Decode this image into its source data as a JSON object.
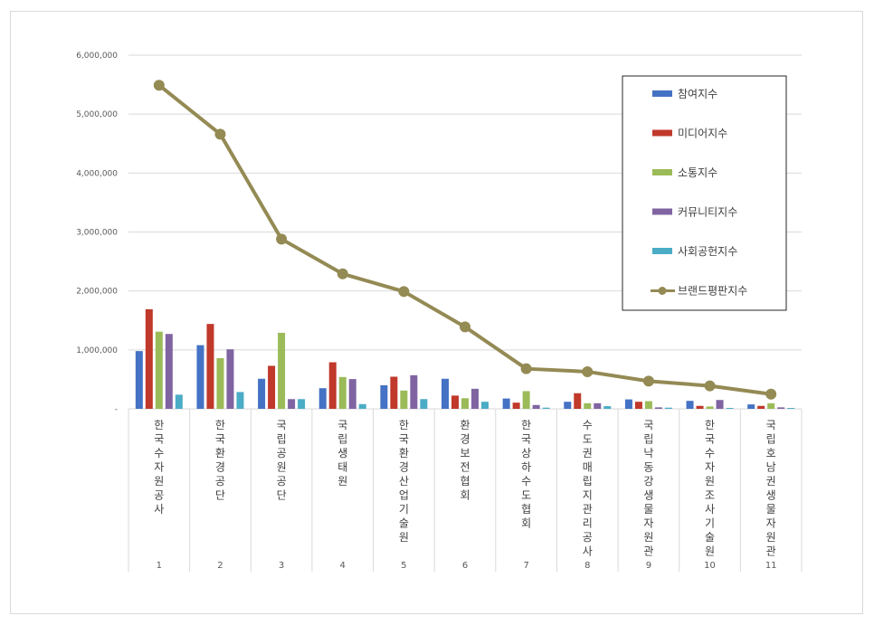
{
  "chart_data": {
    "type": "bar",
    "ylim": [
      0,
      6000000
    ],
    "yticks": [
      "-",
      "1,000,000",
      "2,000,000",
      "3,000,000",
      "4,000,000",
      "5,000,000",
      "6,000,000"
    ],
    "grid": true,
    "legend_position": "top-right",
    "categories": [
      "1",
      "2",
      "3",
      "4",
      "5",
      "6",
      "7",
      "8",
      "9",
      "10",
      "11"
    ],
    "category_names": [
      "한국수자원공사",
      "한국환경공단",
      "국립공원공단",
      "국립생태원",
      "한국환경산업기술원",
      "환경보전협회",
      "한국상하수도협회",
      "수도권매립지관리공사",
      "국립낙동강생물자원관",
      "한국수자원조사기술원",
      "국립호남권생물자원관"
    ],
    "series": [
      {
        "name": "참여지수",
        "kind": "bar",
        "color": "#4472c4",
        "values": [
          980000,
          1080000,
          510000,
          350000,
          400000,
          510000,
          175000,
          120000,
          160000,
          135000,
          75000
        ]
      },
      {
        "name": "미디어지수",
        "kind": "bar",
        "color": "#c0392b",
        "values": [
          1690000,
          1440000,
          730000,
          790000,
          545000,
          225000,
          105000,
          265000,
          120000,
          50000,
          50000
        ]
      },
      {
        "name": "소통지수",
        "kind": "bar",
        "color": "#9bbb59",
        "values": [
          1310000,
          860000,
          1290000,
          540000,
          310000,
          180000,
          300000,
          95000,
          130000,
          40000,
          95000
        ]
      },
      {
        "name": "커뮤니티지수",
        "kind": "bar",
        "color": "#8064a2",
        "values": [
          1270000,
          1010000,
          165000,
          505000,
          570000,
          340000,
          65000,
          95000,
          25000,
          150000,
          25000
        ]
      },
      {
        "name": "사회공헌지수",
        "kind": "bar",
        "color": "#4bacc6",
        "values": [
          240000,
          285000,
          165000,
          80000,
          165000,
          120000,
          20000,
          45000,
          20000,
          15000,
          15000
        ]
      },
      {
        "name": "브랜드평판지수",
        "kind": "line",
        "color": "#948a54",
        "values": [
          5490000,
          4660000,
          2880000,
          2290000,
          1990000,
          1390000,
          680000,
          630000,
          470000,
          390000,
          250000
        ]
      }
    ]
  }
}
